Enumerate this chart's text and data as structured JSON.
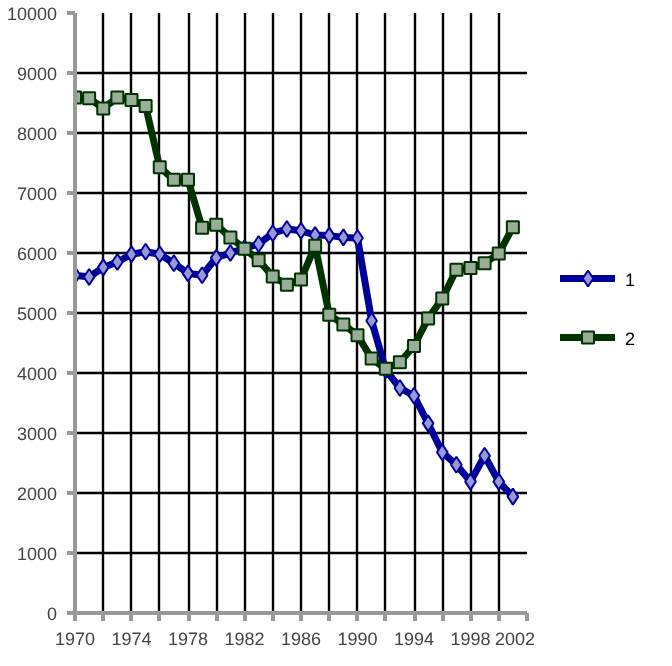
{
  "chart_data": {
    "type": "line",
    "x": [
      1970,
      1971,
      1972,
      1973,
      1974,
      1975,
      1976,
      1977,
      1978,
      1979,
      1980,
      1981,
      1982,
      1983,
      1984,
      1985,
      1986,
      1987,
      1988,
      1989,
      1990,
      1991,
      1992,
      1993,
      1994,
      1995,
      1996,
      1997,
      1998,
      1999,
      2000,
      2001
    ],
    "series": [
      {
        "name": "1",
        "color": "#000099",
        "marker": "diamond",
        "values": [
          5630,
          5600,
          5760,
          5850,
          5980,
          6020,
          5980,
          5830,
          5660,
          5630,
          5920,
          6000,
          6080,
          6150,
          6330,
          6400,
          6370,
          6300,
          6290,
          6260,
          6250,
          4870,
          4050,
          3750,
          3620,
          3160,
          2680,
          2470,
          2190,
          2620,
          2190,
          1940
        ]
      },
      {
        "name": "2",
        "color": "#003300",
        "marker": "square",
        "values": [
          8590,
          8580,
          8410,
          8590,
          8550,
          8450,
          7430,
          7220,
          7220,
          6420,
          6470,
          6260,
          6070,
          5880,
          5610,
          5470,
          5560,
          6120,
          4970,
          4810,
          4630,
          4240,
          4070,
          4180,
          4450,
          4910,
          5240,
          5720,
          5750,
          5830,
          5990,
          6430
        ]
      }
    ],
    "xlim": [
      1970,
      2002
    ],
    "xticks": [
      1970,
      {
        "value": 1972,
        "label": null
      },
      1974,
      {
        "value": 1976,
        "label": null
      },
      1978,
      {
        "value": 1980,
        "label": null
      },
      1982,
      {
        "value": 1984,
        "label": null
      },
      1986,
      {
        "value": 1988,
        "label": null
      },
      1990,
      {
        "value": 1992,
        "label": null
      },
      1994,
      {
        "value": 1996,
        "label": null
      },
      1998,
      {
        "value": 2000,
        "label": null
      },
      2002
    ],
    "ylim": [
      0,
      10000
    ],
    "yticks": [
      0,
      1000,
      2000,
      3000,
      4000,
      5000,
      6000,
      7000,
      8000,
      9000,
      10000
    ],
    "grid": true,
    "legend": "right",
    "line_style": "solid"
  }
}
